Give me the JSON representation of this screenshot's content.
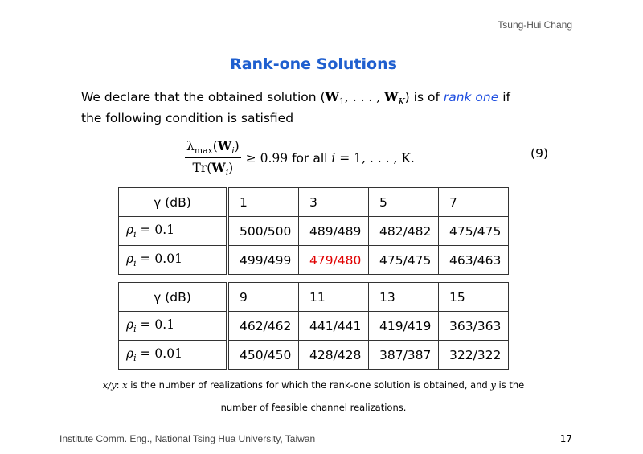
{
  "header": {
    "author": "Tsung-Hui Chang"
  },
  "title": "Rank-one Solutions",
  "body": {
    "line1_pre": "We declare that the obtained solution (",
    "w": "W",
    "sub1": "1",
    "dots": ", . . . , ",
    "subK": "K",
    "line1_mid": ") is of ",
    "emphasis": "rank one",
    "line1_post": " if",
    "line2": "the following condition is satisfied"
  },
  "equation": {
    "numerator": "λ",
    "num_sub": "max",
    "num_arg_open": "(",
    "w": "W",
    "sub_i": "i",
    "close": ")",
    "denominator": "Tr(",
    "rhs_math": "≥ 0.99",
    "rhs_text": " for all ",
    "rhs_tail_i": "i",
    "rhs_tail": " = 1, . . . , K.",
    "number": "(9)"
  },
  "tables": [
    {
      "header_label": "γ (dB)",
      "columns": [
        "1",
        "3",
        "5",
        "7"
      ],
      "rows": [
        {
          "label": "ρ",
          "sub": "i",
          "rhs": " = 0.1",
          "values": [
            "500/500",
            "489/489",
            "482/482",
            "475/475"
          ]
        },
        {
          "label": "ρ",
          "sub": "i",
          "rhs": " = 0.01",
          "values": [
            "499/499",
            "479/480",
            "475/475",
            "463/463"
          ]
        }
      ]
    },
    {
      "header_label": "γ (dB)",
      "columns": [
        "9",
        "11",
        "13",
        "15"
      ],
      "rows": [
        {
          "label": "ρ",
          "sub": "i",
          "rhs": " = 0.1",
          "values": [
            "462/462",
            "441/441",
            "419/419",
            "363/363"
          ]
        },
        {
          "label": "ρ",
          "sub": "i",
          "rhs": " = 0.01",
          "values": [
            "450/450",
            "428/428",
            "387/387",
            "322/322"
          ]
        }
      ]
    }
  ],
  "highlight_color": "#e00000",
  "note": {
    "xy": "x/y",
    "colon": ": ",
    "x": "x",
    "text1": " is the number of realizations for which the rank-one solution is obtained, and ",
    "y": "y",
    "text2": " is the",
    "line2": "number of feasible channel realizations."
  },
  "footer": {
    "institution": "Institute Comm. Eng., National Tsing Hua University, Taiwan",
    "page": "17"
  }
}
